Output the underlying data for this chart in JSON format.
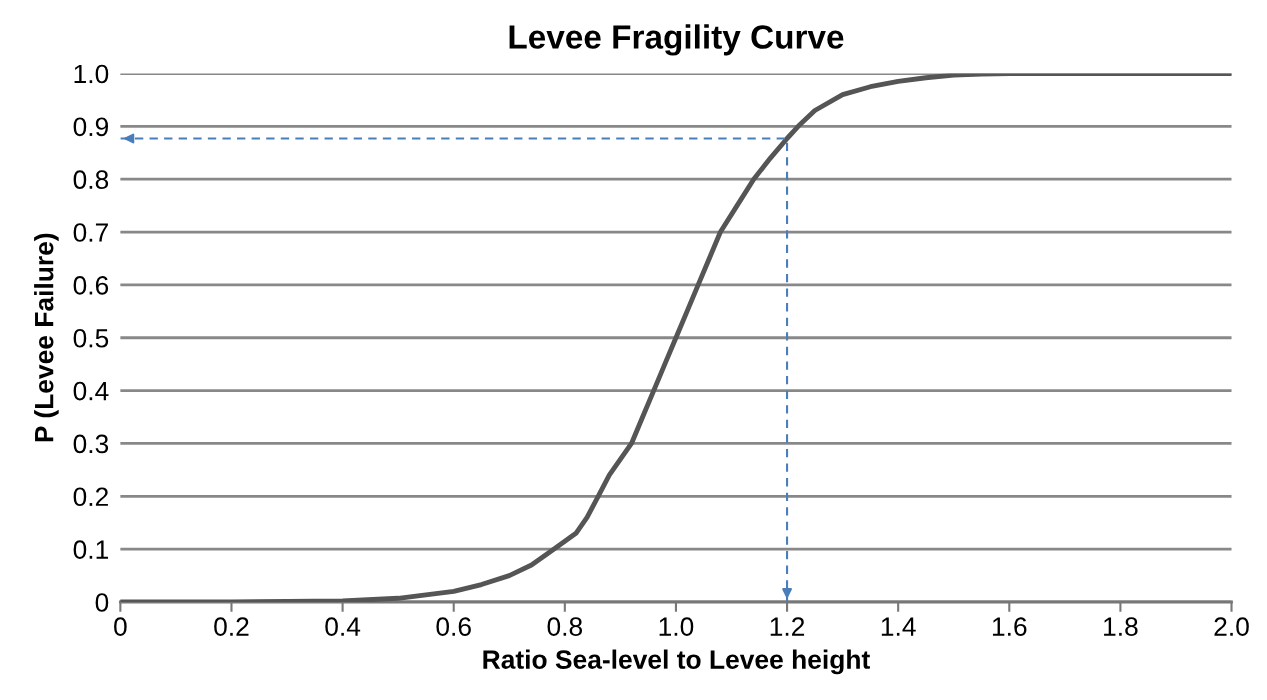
{
  "chart_data": {
    "type": "line",
    "title": "Levee Fragility Curve",
    "xlabel": "Ratio Sea-level to Levee height",
    "ylabel": "P (Levee Failure)",
    "series": [
      {
        "color": "#555555",
        "x": [
          0,
          0.2,
          0.3,
          0.4,
          0.5,
          0.6,
          0.65,
          0.7,
          0.74,
          0.78,
          0.82,
          0.84,
          0.86,
          0.88,
          0.92,
          0.94,
          0.96,
          0.98,
          1.0,
          1.02,
          1.04,
          1.06,
          1.08,
          1.11,
          1.14,
          1.17,
          1.2,
          1.22,
          1.25,
          1.3,
          1.35,
          1.4,
          1.45,
          1.5,
          1.55,
          1.6,
          2.0
        ],
        "values": [
          0,
          0,
          0.001,
          0.002,
          0.007,
          0.02,
          0.033,
          0.05,
          0.07,
          0.1,
          0.13,
          0.16,
          0.2,
          0.24,
          0.3,
          0.35,
          0.4,
          0.45,
          0.5,
          0.55,
          0.6,
          0.65,
          0.7,
          0.75,
          0.8,
          0.84,
          0.877,
          0.9,
          0.93,
          0.96,
          0.975,
          0.985,
          0.992,
          0.997,
          0.999,
          1,
          1
        ]
      },
      {
        "color": "#4a7ebb",
        "line_style": "dashed",
        "x": [
          0,
          1.2,
          1.2
        ],
        "values": [
          0.877,
          0.877,
          0
        ]
      }
    ],
    "xlim": [
      0,
      2.0
    ],
    "ylim": [
      0,
      1.0
    ],
    "xticks": [
      0,
      0.2,
      0.4,
      0.6,
      0.8,
      {
        "value": 1,
        "label": "1.0"
      },
      1.2,
      1.4,
      1.6,
      1.8,
      {
        "value": 2,
        "label": "2.0"
      }
    ],
    "yticks": [
      0,
      0.1,
      0.2,
      0.3,
      0.4,
      0.5,
      0.6,
      0.7,
      0.8,
      0.9,
      {
        "value": 1,
        "label": "1.0"
      }
    ],
    "grid": "y",
    "marker": "none",
    "legend": false
  }
}
